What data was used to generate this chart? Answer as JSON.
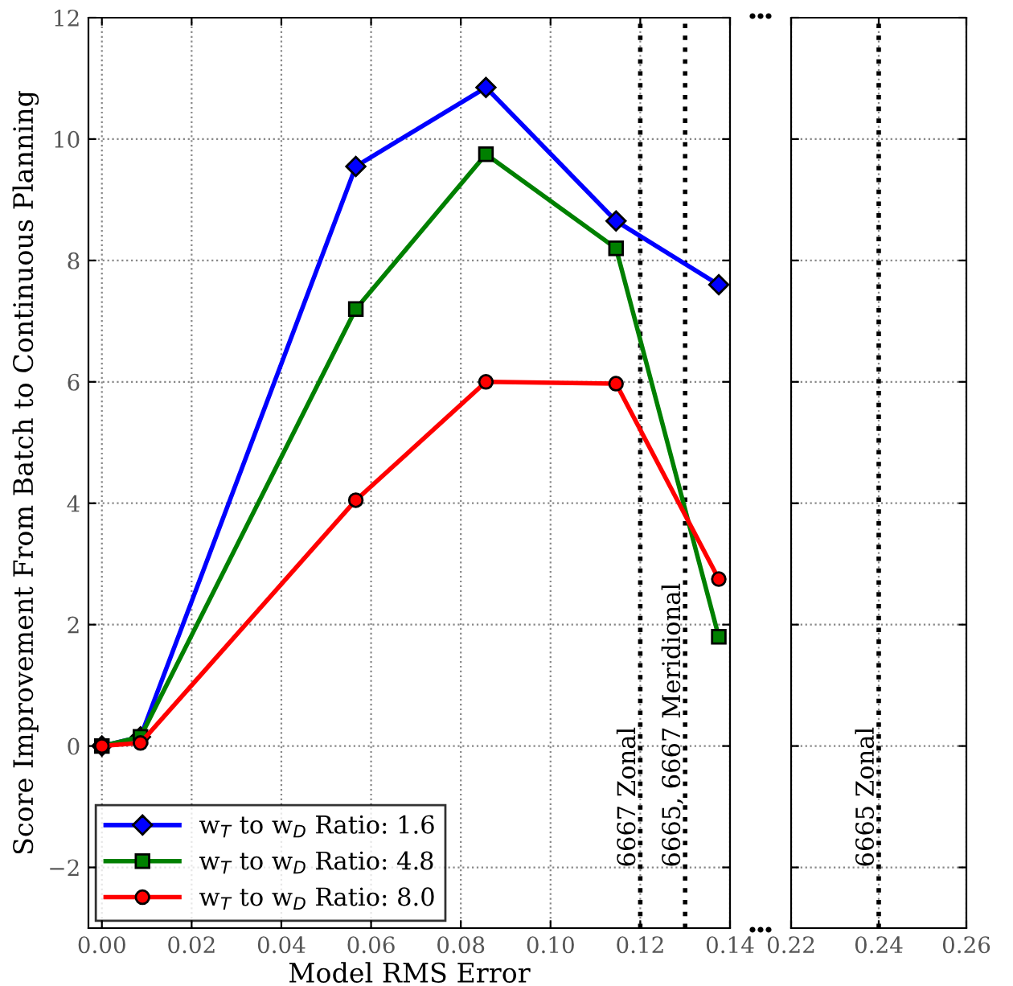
{
  "chart_data": [
    {
      "type": "line",
      "xlabel": "Model RMS Error",
      "ylabel": "Score Improvement From Batch to Continuous Planning",
      "xlim": [
        -0.003,
        0.14
      ],
      "xticks": [
        {
          "value": 0,
          "label": "0.00"
        },
        0.02,
        0.04,
        0.06,
        0.08,
        {
          "value": 0.1,
          "label": "0.10"
        },
        0.12,
        0.14
      ],
      "ylim": [
        -3,
        12
      ],
      "yticks": [
        {
          "value": -2,
          "label": "−2"
        },
        0,
        2,
        4,
        6,
        8,
        10,
        12
      ],
      "grid": true,
      "legend": "bottom left",
      "series": [
        {
          "name": "w$_{T}$ to w$_{D}$ Ratio: 1.6",
          "color": "#0000ff",
          "marker": "diamond",
          "x": [
            0,
            0.0086,
            0.0566,
            0.0856,
            0.1146,
            0.1375
          ],
          "values": [
            0,
            0.15,
            9.55,
            10.85,
            8.65,
            7.6
          ]
        },
        {
          "name": "w$_{T}$ to w$_{D}$ Ratio: 4.8",
          "color": "#008000",
          "marker": "square",
          "x": [
            0,
            0.0086,
            0.0566,
            0.0856,
            0.1146,
            0.1375
          ],
          "values": [
            0,
            0.15,
            7.2,
            9.75,
            8.2,
            1.8
          ]
        },
        {
          "name": "w$_{T}$ to w$_{D}$ Ratio: 8.0",
          "color": "#ff0000",
          "marker": "circle",
          "x": [
            0,
            0.0086,
            0.0566,
            0.0856,
            0.1146,
            0.1375
          ],
          "values": [
            0,
            0.05,
            4.05,
            6.0,
            5.97,
            2.75
          ]
        }
      ],
      "ref_lines": [
        {
          "axis": "x",
          "value": 0.12,
          "label": "6667 Zonal",
          "color": "#000000",
          "line_style": "dotted"
        },
        {
          "axis": "x",
          "value": 0.13,
          "label": "6665, 6667 Meridional",
          "color": "#000000",
          "line_style": "dotted"
        }
      ]
    },
    {
      "type": "line",
      "xlim": [
        0.22,
        0.26
      ],
      "xticks": [
        0.22,
        0.24,
        0.26
      ],
      "ylim": [
        -3,
        12
      ],
      "yticks": [
        -2,
        0,
        2,
        4,
        6,
        8,
        10,
        12
      ],
      "tick_labels": "x",
      "grid": true,
      "ref_lines": [
        {
          "axis": "x",
          "value": 0.24,
          "label": "6665 Zonal",
          "color": "#000000",
          "line_style": "dotted"
        }
      ]
    }
  ]
}
